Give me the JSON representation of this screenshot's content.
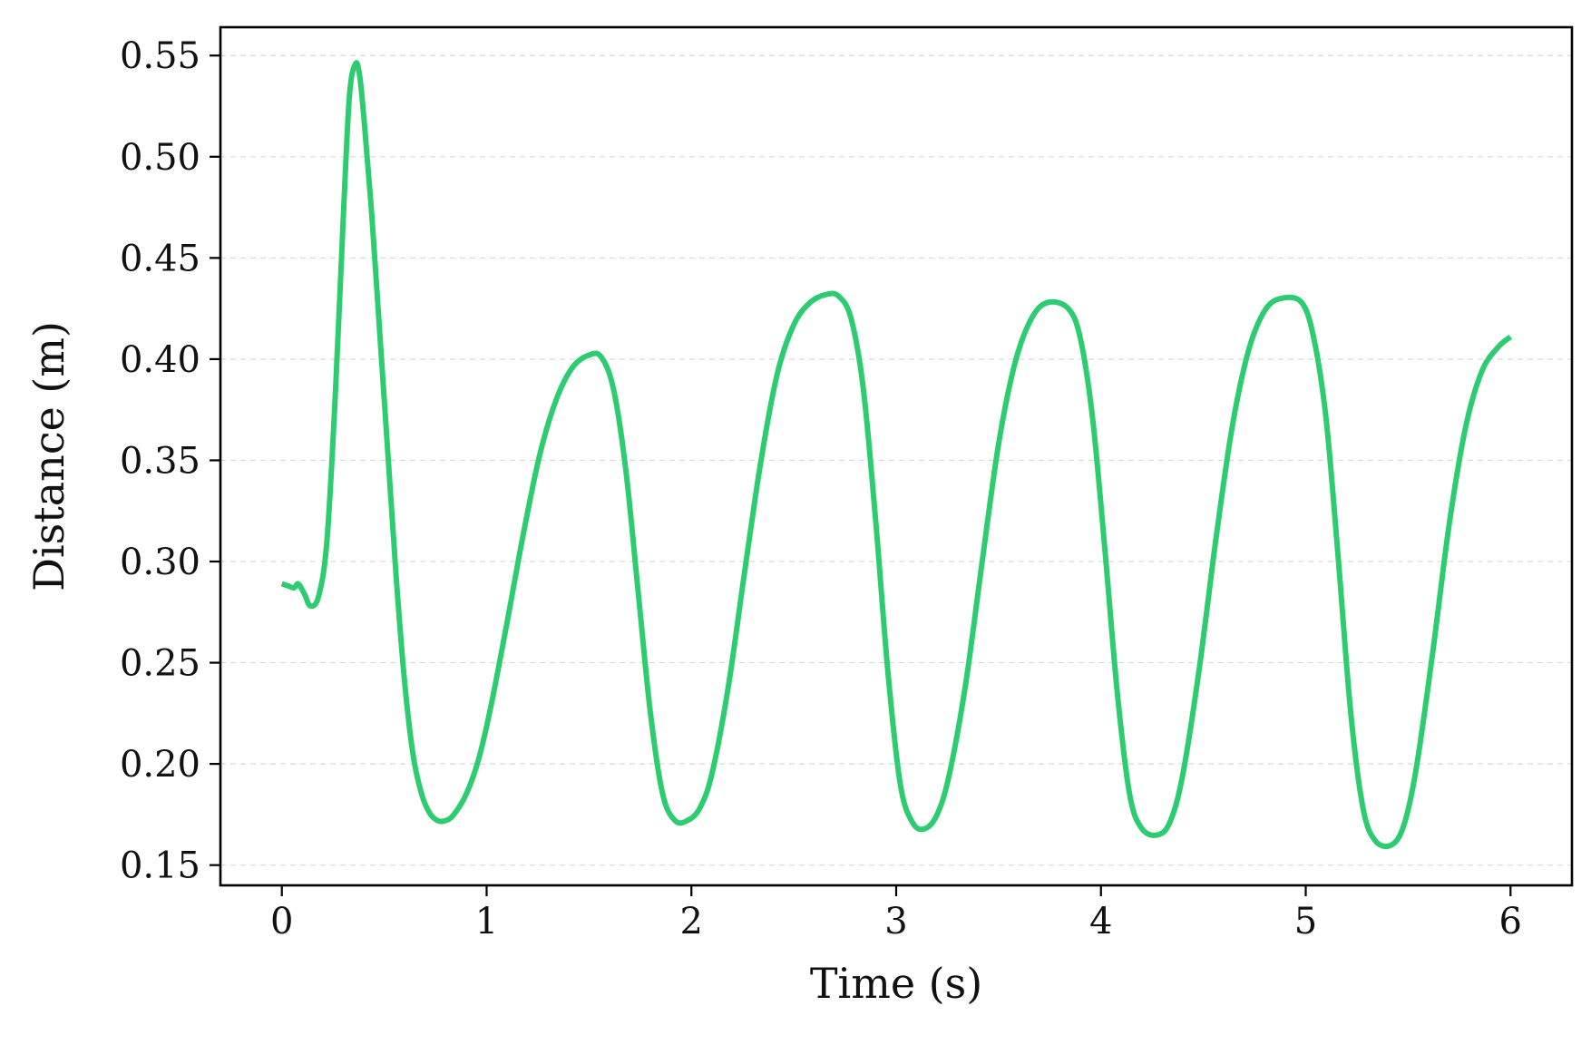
{
  "chart_data": {
    "type": "line",
    "title": "",
    "xlabel": "Time (s)",
    "ylabel": "Distance (m)",
    "xlim": [
      -0.3,
      6.3
    ],
    "ylim": [
      0.14,
      0.564
    ],
    "xticks": [
      0,
      1,
      2,
      3,
      4,
      5,
      6
    ],
    "xtick_labels": [
      "0",
      "1",
      "2",
      "3",
      "4",
      "5",
      "6"
    ],
    "yticks": [
      0.15,
      0.2,
      0.25,
      0.3,
      0.35,
      0.4,
      0.45,
      0.5,
      0.55
    ],
    "ytick_labels": [
      "0.15",
      "0.20",
      "0.25",
      "0.30",
      "0.35",
      "0.40",
      "0.45",
      "0.50",
      "0.55"
    ],
    "grid": "horizontal dashed",
    "legend": "none",
    "line_color": "#2ecc71",
    "series": [
      {
        "x": [
          0,
          0.03,
          0.06,
          0.08,
          0.11,
          0.14,
          0.18,
          0.22,
          0.26,
          0.3,
          0.33,
          0.36,
          0.38,
          0.4,
          0.44,
          0.48,
          0.52,
          0.56,
          0.6,
          0.64,
          0.68,
          0.72,
          0.76,
          0.8,
          0.84,
          0.9,
          0.96,
          1.02,
          1.1,
          1.18,
          1.26,
          1.34,
          1.42,
          1.5,
          1.56,
          1.62,
          1.68,
          1.74,
          1.8,
          1.86,
          1.92,
          1.98,
          2.04,
          2.1,
          2.18,
          2.26,
          2.34,
          2.42,
          2.5,
          2.58,
          2.66,
          2.72,
          2.78,
          2.84,
          2.9,
          2.96,
          3.02,
          3.08,
          3.14,
          3.2,
          3.26,
          3.34,
          3.42,
          3.5,
          3.58,
          3.66,
          3.74,
          3.84,
          3.9,
          3.96,
          4.02,
          4.08,
          4.14,
          4.2,
          4.28,
          4.34,
          4.4,
          4.48,
          4.56,
          4.64,
          4.72,
          4.8,
          4.88,
          4.98,
          5.04,
          5.1,
          5.16,
          5.22,
          5.28,
          5.34,
          5.42,
          5.48,
          5.54,
          5.62,
          5.7,
          5.78,
          5.86,
          5.94,
          6.0
        ],
        "y": [
          0.289,
          0.288,
          0.287,
          0.289,
          0.284,
          0.278,
          0.283,
          0.31,
          0.38,
          0.47,
          0.53,
          0.546,
          0.54,
          0.52,
          0.47,
          0.41,
          0.35,
          0.29,
          0.24,
          0.205,
          0.186,
          0.176,
          0.172,
          0.172,
          0.175,
          0.185,
          0.202,
          0.228,
          0.27,
          0.314,
          0.353,
          0.38,
          0.396,
          0.402,
          0.401,
          0.385,
          0.345,
          0.285,
          0.225,
          0.185,
          0.172,
          0.172,
          0.178,
          0.195,
          0.238,
          0.295,
          0.35,
          0.393,
          0.417,
          0.428,
          0.432,
          0.431,
          0.42,
          0.385,
          0.32,
          0.245,
          0.19,
          0.171,
          0.168,
          0.175,
          0.195,
          0.24,
          0.3,
          0.358,
          0.398,
          0.42,
          0.428,
          0.425,
          0.41,
          0.37,
          0.305,
          0.235,
          0.185,
          0.168,
          0.165,
          0.172,
          0.195,
          0.247,
          0.31,
          0.366,
          0.404,
          0.424,
          0.43,
          0.428,
          0.41,
          0.37,
          0.3,
          0.225,
          0.178,
          0.162,
          0.16,
          0.17,
          0.198,
          0.255,
          0.318,
          0.366,
          0.394,
          0.406,
          0.411
        ]
      }
    ]
  }
}
